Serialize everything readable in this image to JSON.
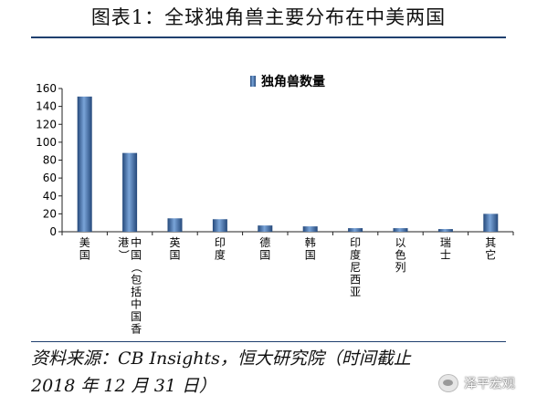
{
  "title": "图表1：全球独角兽主要分布在中美两国",
  "source_line1": "资料来源：CB Insights，恒大研究院（时间截止",
  "source_line2": "2018 年 12 月 31 日）",
  "watermark": "泽平宏观",
  "colors": {
    "bar": "#4f81bd",
    "bar_dark": "#24487a",
    "rule": "#1f3f6e"
  },
  "chart_data": {
    "type": "bar",
    "title": "",
    "xlabel": "",
    "ylabel": "",
    "legend": {
      "position": "top-center"
    },
    "ylim": [
      0,
      160
    ],
    "yticks": [
      0,
      20,
      40,
      60,
      80,
      100,
      120,
      140,
      160
    ],
    "categories": [
      "美国",
      "中国（包括中国香港）",
      "英国",
      "印度",
      "德国",
      "韩国",
      "印度尼西亚",
      "以色列",
      "瑞士",
      "其它"
    ],
    "series": [
      {
        "name": "独角兽数量",
        "values": [
          151,
          88,
          15,
          14,
          7,
          6,
          4,
          4,
          3,
          20
        ]
      }
    ]
  }
}
